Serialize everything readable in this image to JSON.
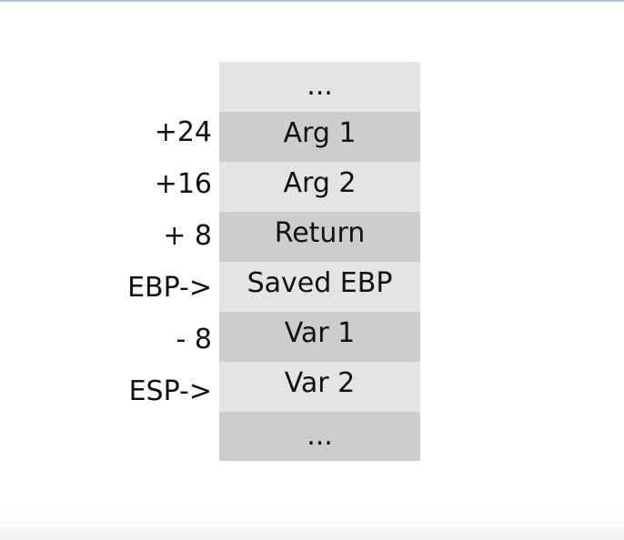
{
  "stack": {
    "cells": [
      {
        "text": "...",
        "shade": "light"
      },
      {
        "text": "Arg 1",
        "shade": "dark"
      },
      {
        "text": "Arg 2",
        "shade": "light"
      },
      {
        "text": "Return",
        "shade": "dark"
      },
      {
        "text": "Saved EBP",
        "shade": "light"
      },
      {
        "text": "Var 1",
        "shade": "dark"
      },
      {
        "text": "Var 2",
        "shade": "light"
      },
      {
        "text": "...",
        "shade": "dark"
      }
    ]
  },
  "offsets": [
    "+24",
    "+16",
    "+ 8",
    "EBP->",
    "- 8",
    "ESP->"
  ],
  "colors": {
    "cell_light": "#e4e4e4",
    "cell_dark": "#cdcdcd",
    "text": "#111111"
  }
}
